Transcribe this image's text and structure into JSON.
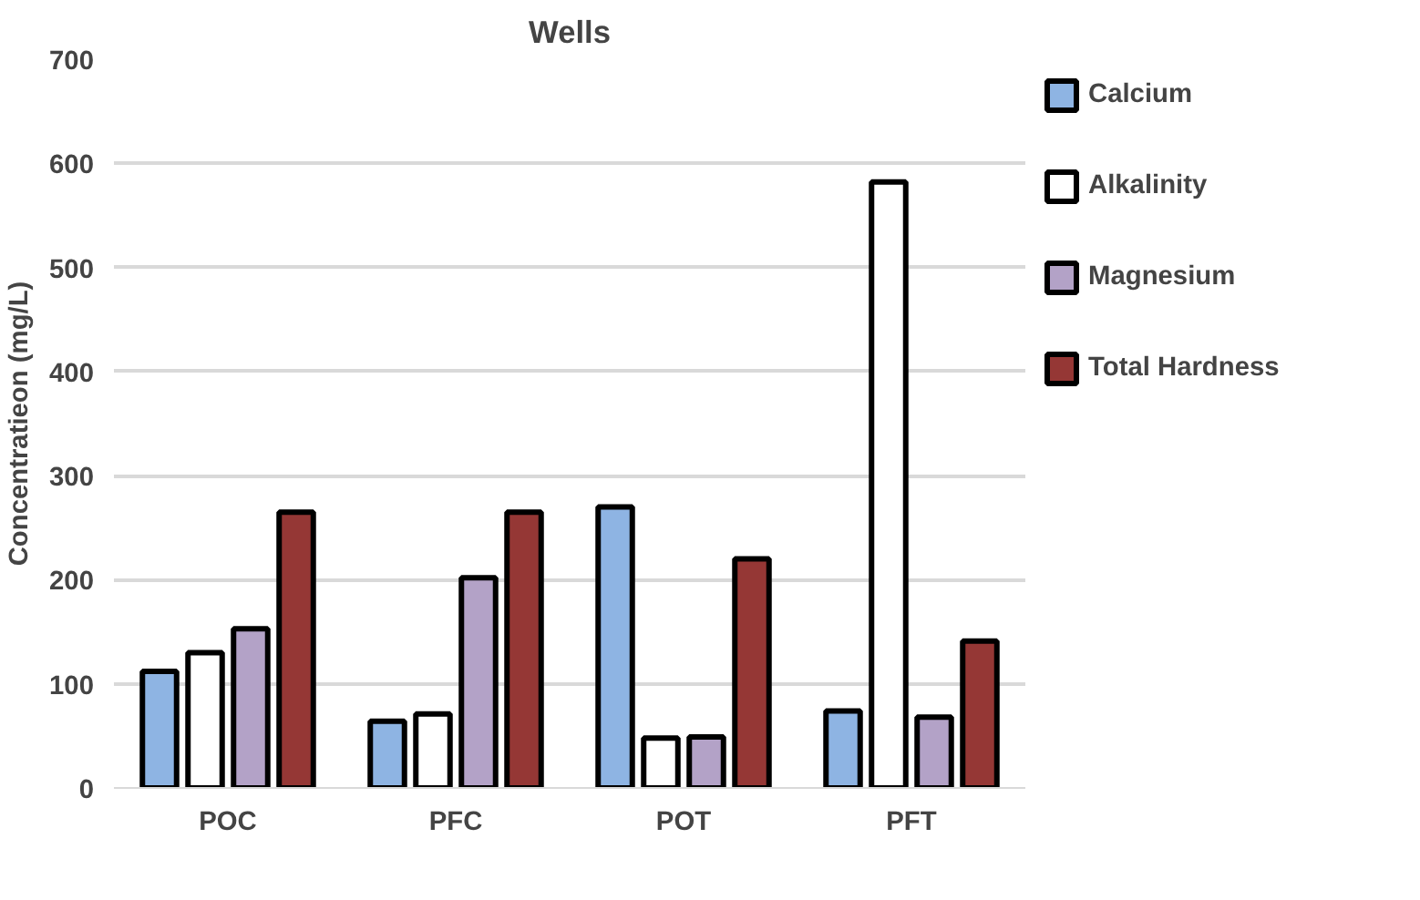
{
  "chart_data": {
    "type": "bar",
    "title": "Wells",
    "ylabel": "Concentratieon (mg/L)",
    "categories": [
      "POC",
      "PFC",
      "POT",
      "PFT"
    ],
    "series": [
      {
        "name": "Calcium",
        "color": "#8eb4e3",
        "values": [
          112,
          64,
          270,
          74
        ]
      },
      {
        "name": "Alkalinity",
        "color": "#ffffff",
        "values": [
          130,
          71,
          48,
          582
        ]
      },
      {
        "name": "Magnesium",
        "color": "#b3a2c7",
        "values": [
          153,
          202,
          49,
          68
        ]
      },
      {
        "name": "Total Hardness",
        "color": "#953735",
        "values": [
          265,
          265,
          220,
          141
        ]
      }
    ],
    "ylim": [
      0,
      700
    ],
    "yticks": [
      0,
      100,
      200,
      300,
      400,
      500,
      600,
      700
    ],
    "grid": "y",
    "legend": "right"
  }
}
